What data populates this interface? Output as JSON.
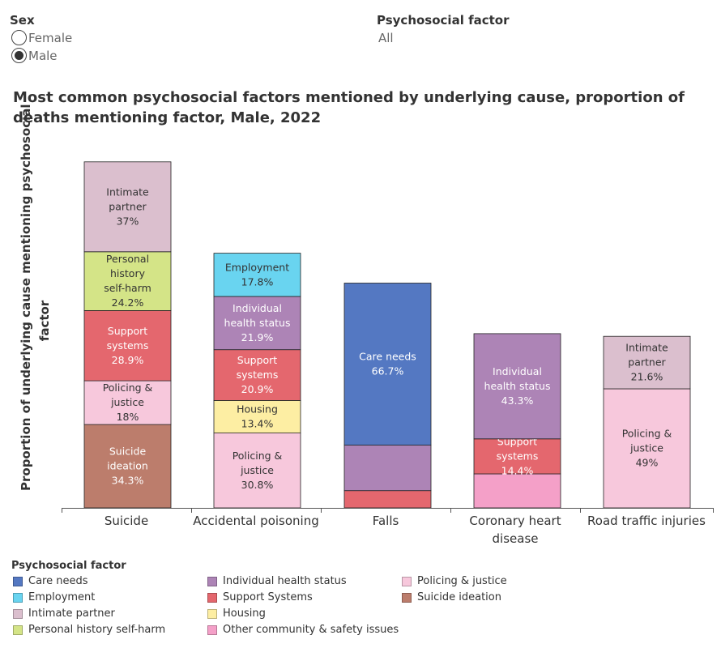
{
  "filters": {
    "sex": {
      "title": "Sex",
      "options": [
        {
          "label": "Female",
          "selected": false
        },
        {
          "label": "Male",
          "selected": true
        }
      ]
    },
    "factor": {
      "title": "Psychosocial factor",
      "value": "All"
    }
  },
  "colors": {
    "care_needs": "#5478c2",
    "individual_health": "#ad84b6",
    "policing": "#f7c8dc",
    "employment": "#69d4f0",
    "support": "#e4676e",
    "suicide_ideation": "#bc7d6c",
    "intimate": "#dbbfce",
    "housing": "#fdeea3",
    "self_harm": "#d4e487",
    "other_community": "#f4a0c8"
  },
  "chart_data": {
    "type": "bar",
    "stacked": true,
    "title": "Most common psychosocial factors mentioned by underlying cause, proportion of deaths mentioning factor, Male, 2022",
    "ylabel": "Proportion of underlying cause mentioning psychosocial factor",
    "categories": [
      "Suicide",
      "Accidental poisoning",
      "Falls",
      "Coronary heart disease",
      "Road traffic injuries"
    ],
    "ylim": [
      0,
      150
    ],
    "stacks": [
      [
        {
          "factor": "Suicide ideation",
          "color_key": "suicide_ideation",
          "label": "Suicide ideation",
          "value": 34.3,
          "value_label": "34.3%"
        },
        {
          "factor": "Policing & justice",
          "color_key": "policing",
          "label": "Policing & justice",
          "value": 18,
          "value_label": "18%"
        },
        {
          "factor": "Support Systems",
          "color_key": "support",
          "label": "Support systems",
          "value": 28.9,
          "value_label": "28.9%"
        },
        {
          "factor": "Personal history  self-harm",
          "color_key": "self_harm",
          "label": "Personal history self-harm",
          "value": 24.2,
          "value_label": "24.2%"
        },
        {
          "factor": "Intimate partner",
          "color_key": "intimate",
          "label": "Intimate partner",
          "value": 37,
          "value_label": "37%"
        }
      ],
      [
        {
          "factor": "Policing & justice",
          "color_key": "policing",
          "label": "Policing & justice",
          "value": 30.8,
          "value_label": "30.8%"
        },
        {
          "factor": "Housing",
          "color_key": "housing",
          "label": "Housing",
          "value": 13.4,
          "value_label": "13.4%"
        },
        {
          "factor": "Support Systems",
          "color_key": "support",
          "label": "Support systems",
          "value": 20.9,
          "value_label": "20.9%"
        },
        {
          "factor": "Individual  health status",
          "color_key": "individual_health",
          "label": "Individual health status",
          "value": 21.9,
          "value_label": "21.9%"
        },
        {
          "factor": "Employment",
          "color_key": "employment",
          "label": "Employment",
          "value": 17.8,
          "value_label": "17.8%"
        }
      ],
      [
        {
          "factor": "Support Systems",
          "color_key": "support",
          "label": "",
          "value": 7.1,
          "value_label": ""
        },
        {
          "factor": "Individual  health status",
          "color_key": "individual_health",
          "label": "",
          "value": 18.7,
          "value_label": ""
        },
        {
          "factor": "Care needs",
          "color_key": "care_needs",
          "label": "Care needs",
          "value": 66.7,
          "value_label": "66.7%"
        }
      ],
      [
        {
          "factor": "Other community  & safety issues",
          "color_key": "other_community",
          "label": "",
          "value": 14,
          "value_label": ""
        },
        {
          "factor": "Support Systems",
          "color_key": "support",
          "label": "Support systems",
          "value": 14.4,
          "value_label": "14.4%"
        },
        {
          "factor": "Individual  health status",
          "color_key": "individual_health",
          "label": "Individual health status",
          "value": 43.3,
          "value_label": "43.3%"
        }
      ],
      [
        {
          "factor": "Policing & justice",
          "color_key": "policing",
          "label": "Policing & justice",
          "value": 49,
          "value_label": "49%"
        },
        {
          "factor": "Intimate partner",
          "color_key": "intimate",
          "label": "Intimate partner",
          "value": 21.6,
          "value_label": "21.6%"
        }
      ]
    ],
    "legend": {
      "title": "Psychosocial factor",
      "placement": "bottom",
      "items": [
        {
          "label": "Care needs",
          "color_key": "care_needs"
        },
        {
          "label": "Employment",
          "color_key": "employment"
        },
        {
          "label": "Intimate partner",
          "color_key": "intimate"
        },
        {
          "label": "Personal history  self-harm",
          "color_key": "self_harm"
        },
        {
          "label": "Individual  health status",
          "color_key": "individual_health"
        },
        {
          "label": "Support Systems",
          "color_key": "support"
        },
        {
          "label": "Housing",
          "color_key": "housing"
        },
        {
          "label": "Other community  & safety issues",
          "color_key": "other_community"
        },
        {
          "label": "Policing & justice",
          "color_key": "policing"
        },
        {
          "label": "Suicide ideation",
          "color_key": "suicide_ideation"
        }
      ]
    }
  }
}
